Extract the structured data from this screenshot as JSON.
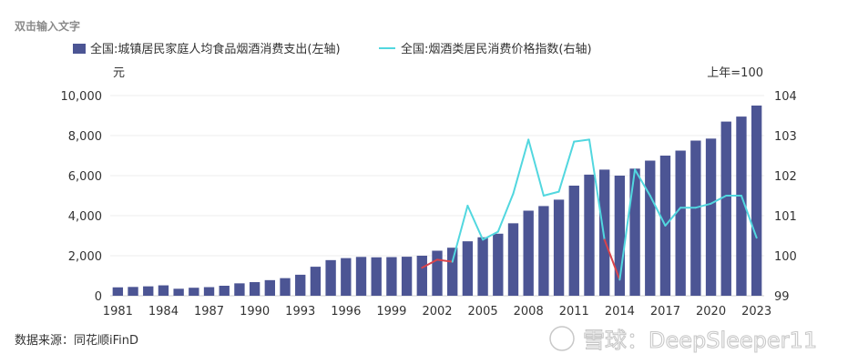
{
  "header_text": "双击输入文字",
  "source_text": "数据来源：同花顺iFinD",
  "watermark_text": "雪球：DeepSleeper11",
  "colors": {
    "bar": "#4c5594",
    "line": "#52d7df",
    "line_down": "#d9434a",
    "grid": "#ececec",
    "text": "#333333"
  },
  "chart_data": {
    "type": "bar",
    "title": "",
    "x": [
      1981,
      1982,
      1983,
      1984,
      1985,
      1986,
      1987,
      1988,
      1989,
      1990,
      1991,
      1992,
      1993,
      1994,
      1995,
      1996,
      1997,
      1998,
      1999,
      2000,
      2001,
      2002,
      2003,
      2004,
      2005,
      2006,
      2007,
      2008,
      2009,
      2010,
      2011,
      2012,
      2013,
      2014,
      2015,
      2016,
      2017,
      2018,
      2019,
      2020,
      2021,
      2022,
      2023
    ],
    "x_tick_labels": [
      "1981",
      "1984",
      "1987",
      "1990",
      "1993",
      "1996",
      "1999",
      "2002",
      "2005",
      "2008",
      "2011",
      "2014",
      "2017",
      "2020",
      "2023"
    ],
    "left_axis": {
      "unit": "元",
      "ylim": [
        0,
        10000
      ],
      "ticks": [
        "0",
        "2,000",
        "4,000",
        "6,000",
        "8,000",
        "10,000"
      ],
      "tick_values": [
        0,
        2000,
        4000,
        6000,
        8000,
        10000
      ]
    },
    "right_axis": {
      "unit": "上年=100",
      "ylim": [
        99,
        104
      ],
      "ticks": [
        "99",
        "100",
        "101",
        "102",
        "103",
        "104"
      ],
      "tick_values": [
        99,
        100,
        101,
        102,
        103,
        104
      ]
    },
    "series": [
      {
        "name": "全国:城镇居民家庭人均食品烟酒消费支出(左轴)",
        "axis": "left",
        "type": "bar",
        "values": [
          420,
          440,
          470,
          520,
          350,
          400,
          430,
          500,
          620,
          680,
          780,
          880,
          1050,
          1450,
          1780,
          1880,
          1940,
          1920,
          1930,
          1950,
          2000,
          2250,
          2400,
          2720,
          2920,
          3100,
          3620,
          4250,
          4480,
          4800,
          5500,
          6050,
          6300,
          6000,
          6350,
          6750,
          7000,
          7250,
          7750,
          7850,
          8700,
          8950,
          9500
        ]
      },
      {
        "name": "全国:烟酒类居民消费价格指数(右轴)",
        "axis": "right",
        "type": "line",
        "x": [
          2001,
          2002,
          2003,
          2004,
          2005,
          2006,
          2007,
          2008,
          2009,
          2010,
          2011,
          2012,
          2013,
          2014,
          2015,
          2016,
          2017,
          2018,
          2019,
          2020,
          2021,
          2022,
          2023
        ],
        "values": [
          99.7,
          99.9,
          99.85,
          101.25,
          100.4,
          100.6,
          101.55,
          102.9,
          101.5,
          101.6,
          102.85,
          102.9,
          100.4,
          99.4,
          102.15,
          101.5,
          100.75,
          101.2,
          101.2,
          101.3,
          101.5,
          101.5,
          100.45
        ]
      }
    ],
    "grid": true,
    "legend_position": "top-left"
  }
}
